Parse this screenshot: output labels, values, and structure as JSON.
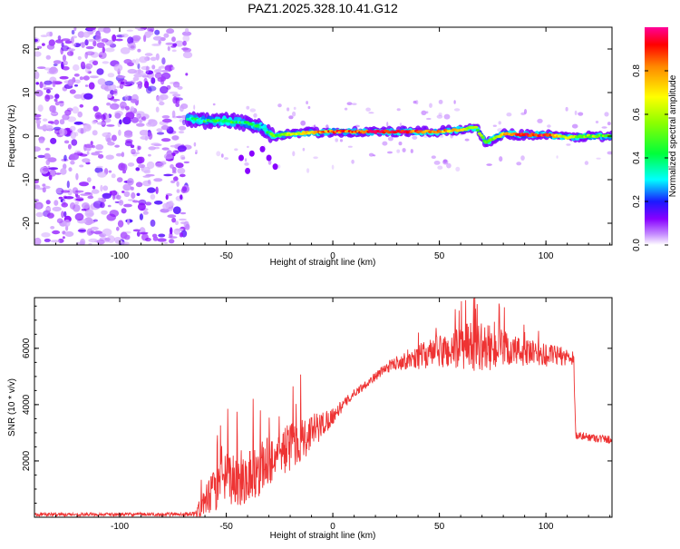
{
  "title": "PAZ1.2025.328.10.41.G12",
  "chart_data": [
    {
      "type": "heatmap",
      "xlabel": "Height of straight line (km)",
      "ylabel": "Frequency (Hz)",
      "xlim": [
        -140,
        131
      ],
      "ylim": [
        -25,
        25
      ],
      "xticks": [
        -100,
        -50,
        0,
        50,
        100
      ],
      "yticks": [
        -20,
        -10,
        0,
        10,
        20
      ],
      "noise_region_km": [
        -140,
        -68
      ],
      "signal_track": {
        "x": [
          -68,
          -60,
          -50,
          -40,
          -33,
          -28,
          -20,
          -10,
          0,
          10,
          20,
          30,
          40,
          50,
          60,
          67,
          72,
          80,
          90,
          100,
          110,
          120,
          131
        ],
        "freq_hz": [
          4,
          3.5,
          3.5,
          3,
          2,
          0,
          0.5,
          0.8,
          1,
          1,
          1,
          1,
          1,
          1,
          1.5,
          2,
          -1.5,
          0.5,
          0.3,
          0.3,
          -0.3,
          0,
          0
        ],
        "amplitude": [
          0.35,
          0.4,
          0.45,
          0.4,
          0.35,
          0.5,
          0.6,
          0.75,
          0.85,
          0.85,
          0.95,
          0.95,
          0.85,
          0.8,
          0.7,
          0.55,
          0.45,
          0.75,
          0.95,
          0.9,
          0.6,
          0.55,
          0.5
        ]
      },
      "colorbar": {
        "label": "Normalized spectral amplitude",
        "ticks": [
          0.0,
          0.2,
          0.4,
          0.6,
          0.8
        ],
        "range": [
          0,
          1
        ]
      }
    },
    {
      "type": "line",
      "xlabel": "Height of straight line (km)",
      "ylabel": "SNR (10 * v/v)",
      "xlim": [
        -140,
        131
      ],
      "ylim": [
        0,
        7800
      ],
      "xticks": [
        -100,
        -50,
        0,
        50,
        100
      ],
      "yticks": [
        2000,
        4000,
        6000
      ],
      "series": [
        {
          "name": "SNR",
          "color": "#ee3333",
          "x": [
            -140,
            -120,
            -100,
            -80,
            -65,
            -62,
            -58,
            -55,
            -50,
            -45,
            -40,
            -35,
            -30,
            -25,
            -20,
            -15,
            -10,
            -5,
            0,
            5,
            10,
            15,
            20,
            25,
            30,
            35,
            40,
            45,
            50,
            55,
            60,
            65,
            70,
            75,
            80,
            85,
            90,
            95,
            100,
            105,
            110,
            113,
            114,
            120,
            125,
            131
          ],
          "y": [
            100,
            100,
            100,
            100,
            120,
            300,
            700,
            1000,
            1400,
            1300,
            1500,
            1700,
            2000,
            2300,
            2500,
            2800,
            3000,
            3300,
            3600,
            4000,
            4400,
            4700,
            5000,
            5300,
            5500,
            5600,
            5700,
            5800,
            5900,
            5900,
            6000,
            6100,
            6050,
            6000,
            5950,
            5900,
            5850,
            5800,
            5750,
            5750,
            5700,
            5700,
            2900,
            2850,
            2800,
            2750
          ],
          "noise_amplitude": [
            60,
            60,
            60,
            60,
            80,
            400,
            700,
            800,
            900,
            1000,
            1000,
            1000,
            900,
            800,
            900,
            800,
            700,
            500,
            300,
            200,
            150,
            150,
            150,
            200,
            250,
            350,
            450,
            500,
            600,
            700,
            800,
            900,
            850,
            800,
            700,
            600,
            500,
            450,
            400,
            350,
            300,
            300,
            150,
            150,
            150,
            150
          ]
        }
      ]
    }
  ]
}
